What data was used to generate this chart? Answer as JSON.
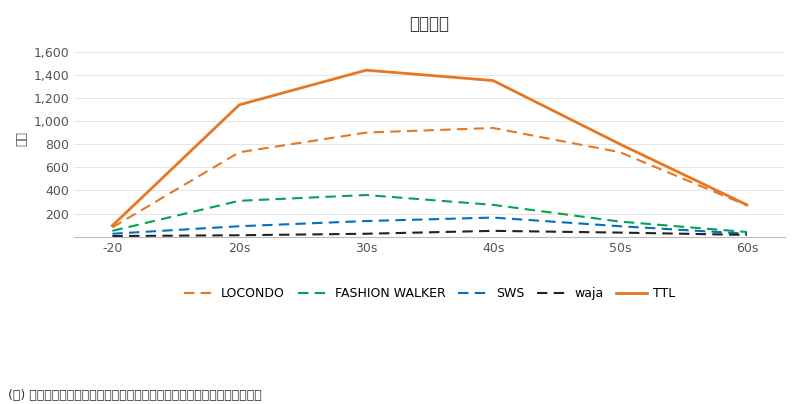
{
  "title": "会員分布",
  "ylabel": "千人",
  "categories": [
    "-20",
    "20s",
    "30s",
    "40s",
    "50s",
    "60s"
  ],
  "series_order": [
    "TTL",
    "LOCONDO",
    "FASHION WALKER",
    "SWS",
    "waja"
  ],
  "series": {
    "LOCONDO": {
      "values": [
        80,
        730,
        900,
        940,
        730,
        270
      ],
      "color": "#E87722",
      "linestyle": "dashed",
      "linewidth": 1.5
    },
    "FASHION WALKER": {
      "values": [
        50,
        310,
        360,
        275,
        130,
        40
      ],
      "color": "#00A550",
      "linestyle": "dashed",
      "linewidth": 1.5
    },
    "SWS": {
      "values": [
        25,
        90,
        135,
        165,
        90,
        25
      ],
      "color": "#0070C0",
      "linestyle": "dashed",
      "linewidth": 1.5
    },
    "waja": {
      "values": [
        5,
        12,
        25,
        50,
        35,
        15
      ],
      "color": "#222222",
      "linestyle": "dashed",
      "linewidth": 1.5
    },
    "TTL": {
      "values": [
        95,
        1140,
        1440,
        1350,
        800,
        275
      ],
      "color": "#E87722",
      "linestyle": "solid",
      "linewidth": 2.0
    }
  },
  "ylim": [
    0,
    1700
  ],
  "yticks": [
    0,
    200,
    400,
    600,
    800,
    1000,
    1200,
    1400,
    1600
  ],
  "ytick_labels": [
    "",
    "200",
    "400",
    "600",
    "800",
    "1,000",
    "1,200",
    "1,400",
    "1,600"
  ],
  "note": "(注) 自社モールのうち誤生日データが正確に取得できるアカウントに限る",
  "background_color": "#ffffff",
  "title_fontsize": 12,
  "label_fontsize": 9,
  "note_fontsize": 9,
  "tick_color": "#555555",
  "grid_color": "#e0e0e0"
}
